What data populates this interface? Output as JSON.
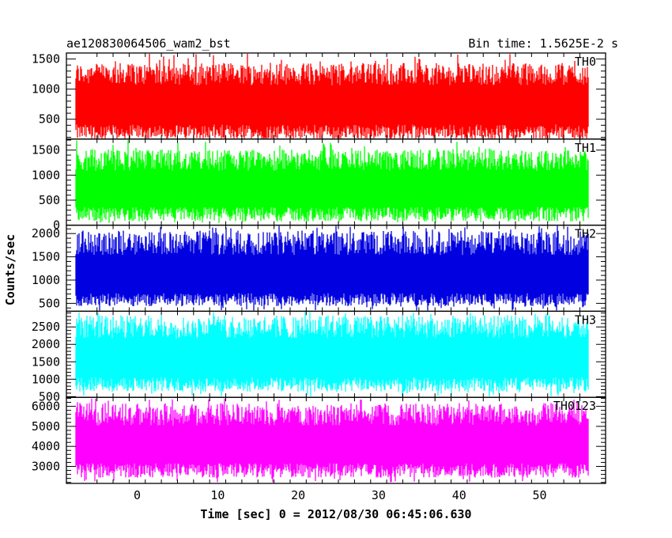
{
  "chart_data": {
    "type": "line",
    "title_left": "ae120830064506_wam2_bst",
    "title_right": "Bin time: 1.5625E-2 s",
    "xlabel": "Time [sec] 0 = 2012/08/30 06:45:06.630",
    "ylabel": "Counts/sec",
    "xlim": [
      -8.8,
      58.2
    ],
    "x_range_data": [
      -7.6,
      56.0
    ],
    "x_ticks": [
      0,
      10,
      20,
      30,
      40,
      50
    ],
    "x_tick_labels": [
      "0",
      "10",
      "20",
      "30",
      "40",
      "50"
    ],
    "panels": [
      {
        "name": "TH0",
        "color": "#ff0000",
        "ylim": [
          170,
          1600
        ],
        "yticks": [
          500,
          1000,
          1500
        ],
        "ytick_labels": [
          "500",
          "1000",
          "1500"
        ],
        "mean": 720,
        "low_typ": 280,
        "high_typ": 1250,
        "low_min": 200,
        "high_max": 1600
      },
      {
        "name": "TH1",
        "color": "#00ff00",
        "ylim": [
          0,
          1720
        ],
        "yticks": [
          0,
          500,
          1000,
          1500
        ],
        "ytick_labels": [
          "0",
          "500",
          "1000",
          "1500"
        ],
        "mean": 700,
        "low_typ": 220,
        "high_typ": 1300,
        "low_min": 30,
        "high_max": 1700
      },
      {
        "name": "TH2",
        "color": "#0000e0",
        "ylim": [
          330,
          2180
        ],
        "yticks": [
          500,
          1000,
          1500,
          2000
        ],
        "ytick_labels": [
          "500",
          "1000",
          "1500",
          "2000"
        ],
        "mean": 1050,
        "low_typ": 580,
        "high_typ": 1800,
        "low_min": 330,
        "high_max": 2180
      },
      {
        "name": "TH3",
        "color": "#00ffff",
        "ylim": [
          480,
          2950
        ],
        "yticks": [
          500,
          1000,
          1500,
          2000,
          2500
        ],
        "ytick_labels": [
          "500",
          "1000",
          "1500",
          "2000",
          "2500"
        ],
        "mean": 1550,
        "low_typ": 850,
        "high_typ": 2500,
        "low_min": 480,
        "high_max": 2950
      },
      {
        "name": "TH0123",
        "color": "#ff00ff",
        "ylim": [
          2150,
          6450
        ],
        "yticks": [
          3000,
          4000,
          5000,
          6000
        ],
        "ytick_labels": [
          "3000",
          "4000",
          "5000",
          "6000"
        ],
        "mean": 4000,
        "low_typ": 2800,
        "high_typ": 5600,
        "low_min": 2150,
        "high_max": 6400
      }
    ],
    "grid": false,
    "legend": "none"
  }
}
